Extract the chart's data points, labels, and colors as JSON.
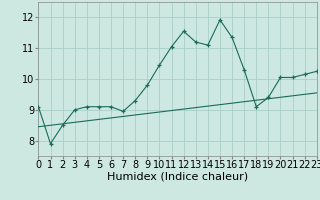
{
  "title": "",
  "xlabel": "Humidex (Indice chaleur)",
  "ylabel": "",
  "background_color": "#cce8e0",
  "grid_color": "#aacfc8",
  "line_color": "#1a6b5a",
  "xlim": [
    0,
    23
  ],
  "ylim": [
    7.5,
    12.5
  ],
  "yticks": [
    8,
    9,
    10,
    11,
    12
  ],
  "xticks": [
    0,
    1,
    2,
    3,
    4,
    5,
    6,
    7,
    8,
    9,
    10,
    11,
    12,
    13,
    14,
    15,
    16,
    17,
    18,
    19,
    20,
    21,
    22,
    23
  ],
  "series1_x": [
    0,
    1,
    2,
    3,
    4,
    5,
    6,
    7,
    8,
    9,
    10,
    11,
    12,
    13,
    14,
    15,
    16,
    17,
    18,
    19,
    20,
    21,
    22,
    23
  ],
  "series1_y": [
    9.1,
    7.9,
    8.5,
    9.0,
    9.1,
    9.1,
    9.1,
    8.95,
    9.3,
    9.8,
    10.45,
    11.05,
    11.55,
    11.2,
    11.1,
    11.92,
    11.35,
    10.3,
    9.1,
    9.4,
    10.05,
    10.05,
    10.15,
    10.25
  ],
  "series2_x": [
    0,
    23
  ],
  "series2_y": [
    8.45,
    9.55
  ],
  "fontsize_xlabel": 8,
  "fontsize_ticks": 7
}
